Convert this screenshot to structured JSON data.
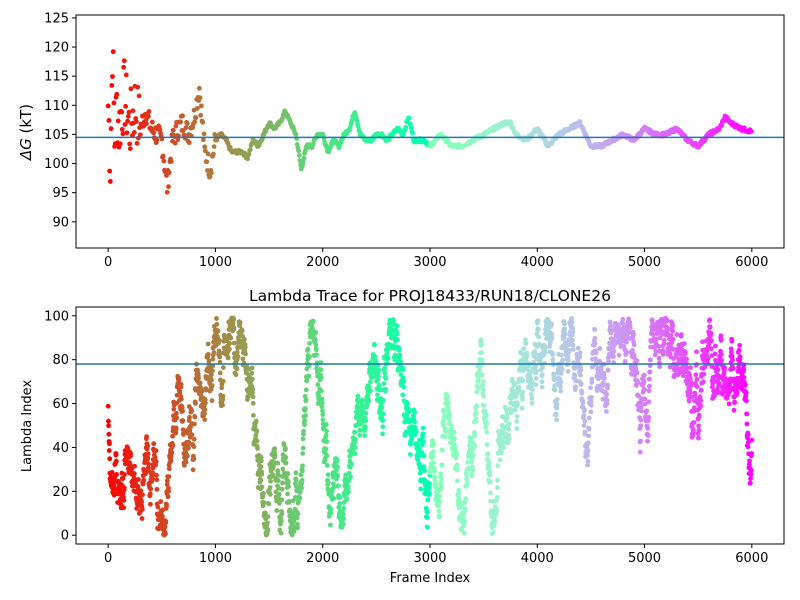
{
  "chart_data": [
    {
      "type": "scatter",
      "title": "",
      "xlabel": "",
      "ylabel": "ΔG (kT)",
      "ylabel_symbol": "ΔG",
      "ylabel_unit": "(kT)",
      "xlim": [
        -300,
        6300
      ],
      "ylim": [
        85.5,
        125.5
      ],
      "xticks": [
        0,
        1000,
        2000,
        3000,
        4000,
        5000,
        6000
      ],
      "yticks": [
        90,
        95,
        100,
        105,
        110,
        115,
        120,
        125
      ],
      "colormap": "rainbow",
      "colormap_direction": "red at frame 0 to violet at frame 6000",
      "hline": {
        "y": 104.5,
        "color": "#1f77b4"
      },
      "series": [
        {
          "x": [
            0,
            20,
            40,
            60,
            80,
            100,
            150,
            200,
            250,
            300,
            350,
            400,
            500,
            550,
            600,
            650,
            700,
            750,
            800,
            850,
            900,
            950,
            1000,
            1050,
            1100,
            1150,
            1200,
            1250,
            1300,
            1350,
            1400,
            1450,
            1500,
            1550,
            1600,
            1650,
            1700,
            1750,
            1800,
            1850,
            1900,
            1950,
            2000,
            2050,
            2100,
            2150,
            2200,
            2250,
            2300,
            2350,
            2400,
            2450,
            2500,
            2550,
            2600,
            2650,
            2700,
            2750,
            2800,
            2850,
            2900,
            2950,
            3000,
            3100,
            3200,
            3300,
            3400,
            3500,
            3600,
            3700,
            3750,
            3800,
            3900,
            4000,
            4100,
            4200,
            4300,
            4400,
            4500,
            4600,
            4700,
            4800,
            4900,
            5000,
            5100,
            5200,
            5300,
            5400,
            5500,
            5600,
            5700,
            5750,
            5800,
            5900,
            6000
          ],
          "y": [
            110,
            100,
            120,
            104,
            110,
            106,
            112,
            106,
            110,
            106,
            109,
            106,
            104,
            96,
            104,
            106,
            107,
            105,
            108,
            113,
            102,
            99,
            104,
            105,
            104,
            102,
            102,
            102,
            101,
            104,
            103,
            105,
            107,
            106,
            107,
            109,
            107,
            105,
            99,
            103,
            103,
            105,
            105,
            102,
            104,
            103,
            105,
            106,
            109,
            105,
            104,
            104,
            105,
            105,
            104,
            105,
            106,
            105,
            108,
            104,
            104,
            104,
            103,
            105,
            103,
            103,
            104,
            105,
            106,
            107,
            107,
            105,
            104,
            106,
            103,
            105,
            106,
            107,
            103,
            103,
            104,
            105,
            104,
            106,
            105,
            105,
            106,
            104,
            103,
            105,
            106,
            108,
            107,
            106,
            105.5
          ]
        }
      ]
    },
    {
      "type": "scatter",
      "title": "Lambda Trace for PROJ18433/RUN18/CLONE26",
      "xlabel": "Frame Index",
      "ylabel": "Lambda Index",
      "xlim": [
        -300,
        6300
      ],
      "ylim": [
        -4,
        104
      ],
      "xticks": [
        0,
        1000,
        2000,
        3000,
        4000,
        5000,
        6000
      ],
      "yticks": [
        0,
        20,
        40,
        60,
        80,
        100
      ],
      "colormap": "rainbow",
      "colormap_direction": "red at frame 0 to violet at frame 6000",
      "hline": {
        "y": 78,
        "color": "#1f77b4"
      },
      "points_per_frame": 1,
      "frame_step": 1,
      "series": [
        {
          "x_range": [
            0,
            6000
          ],
          "y_range": [
            0,
            99
          ]
        }
      ]
    }
  ]
}
